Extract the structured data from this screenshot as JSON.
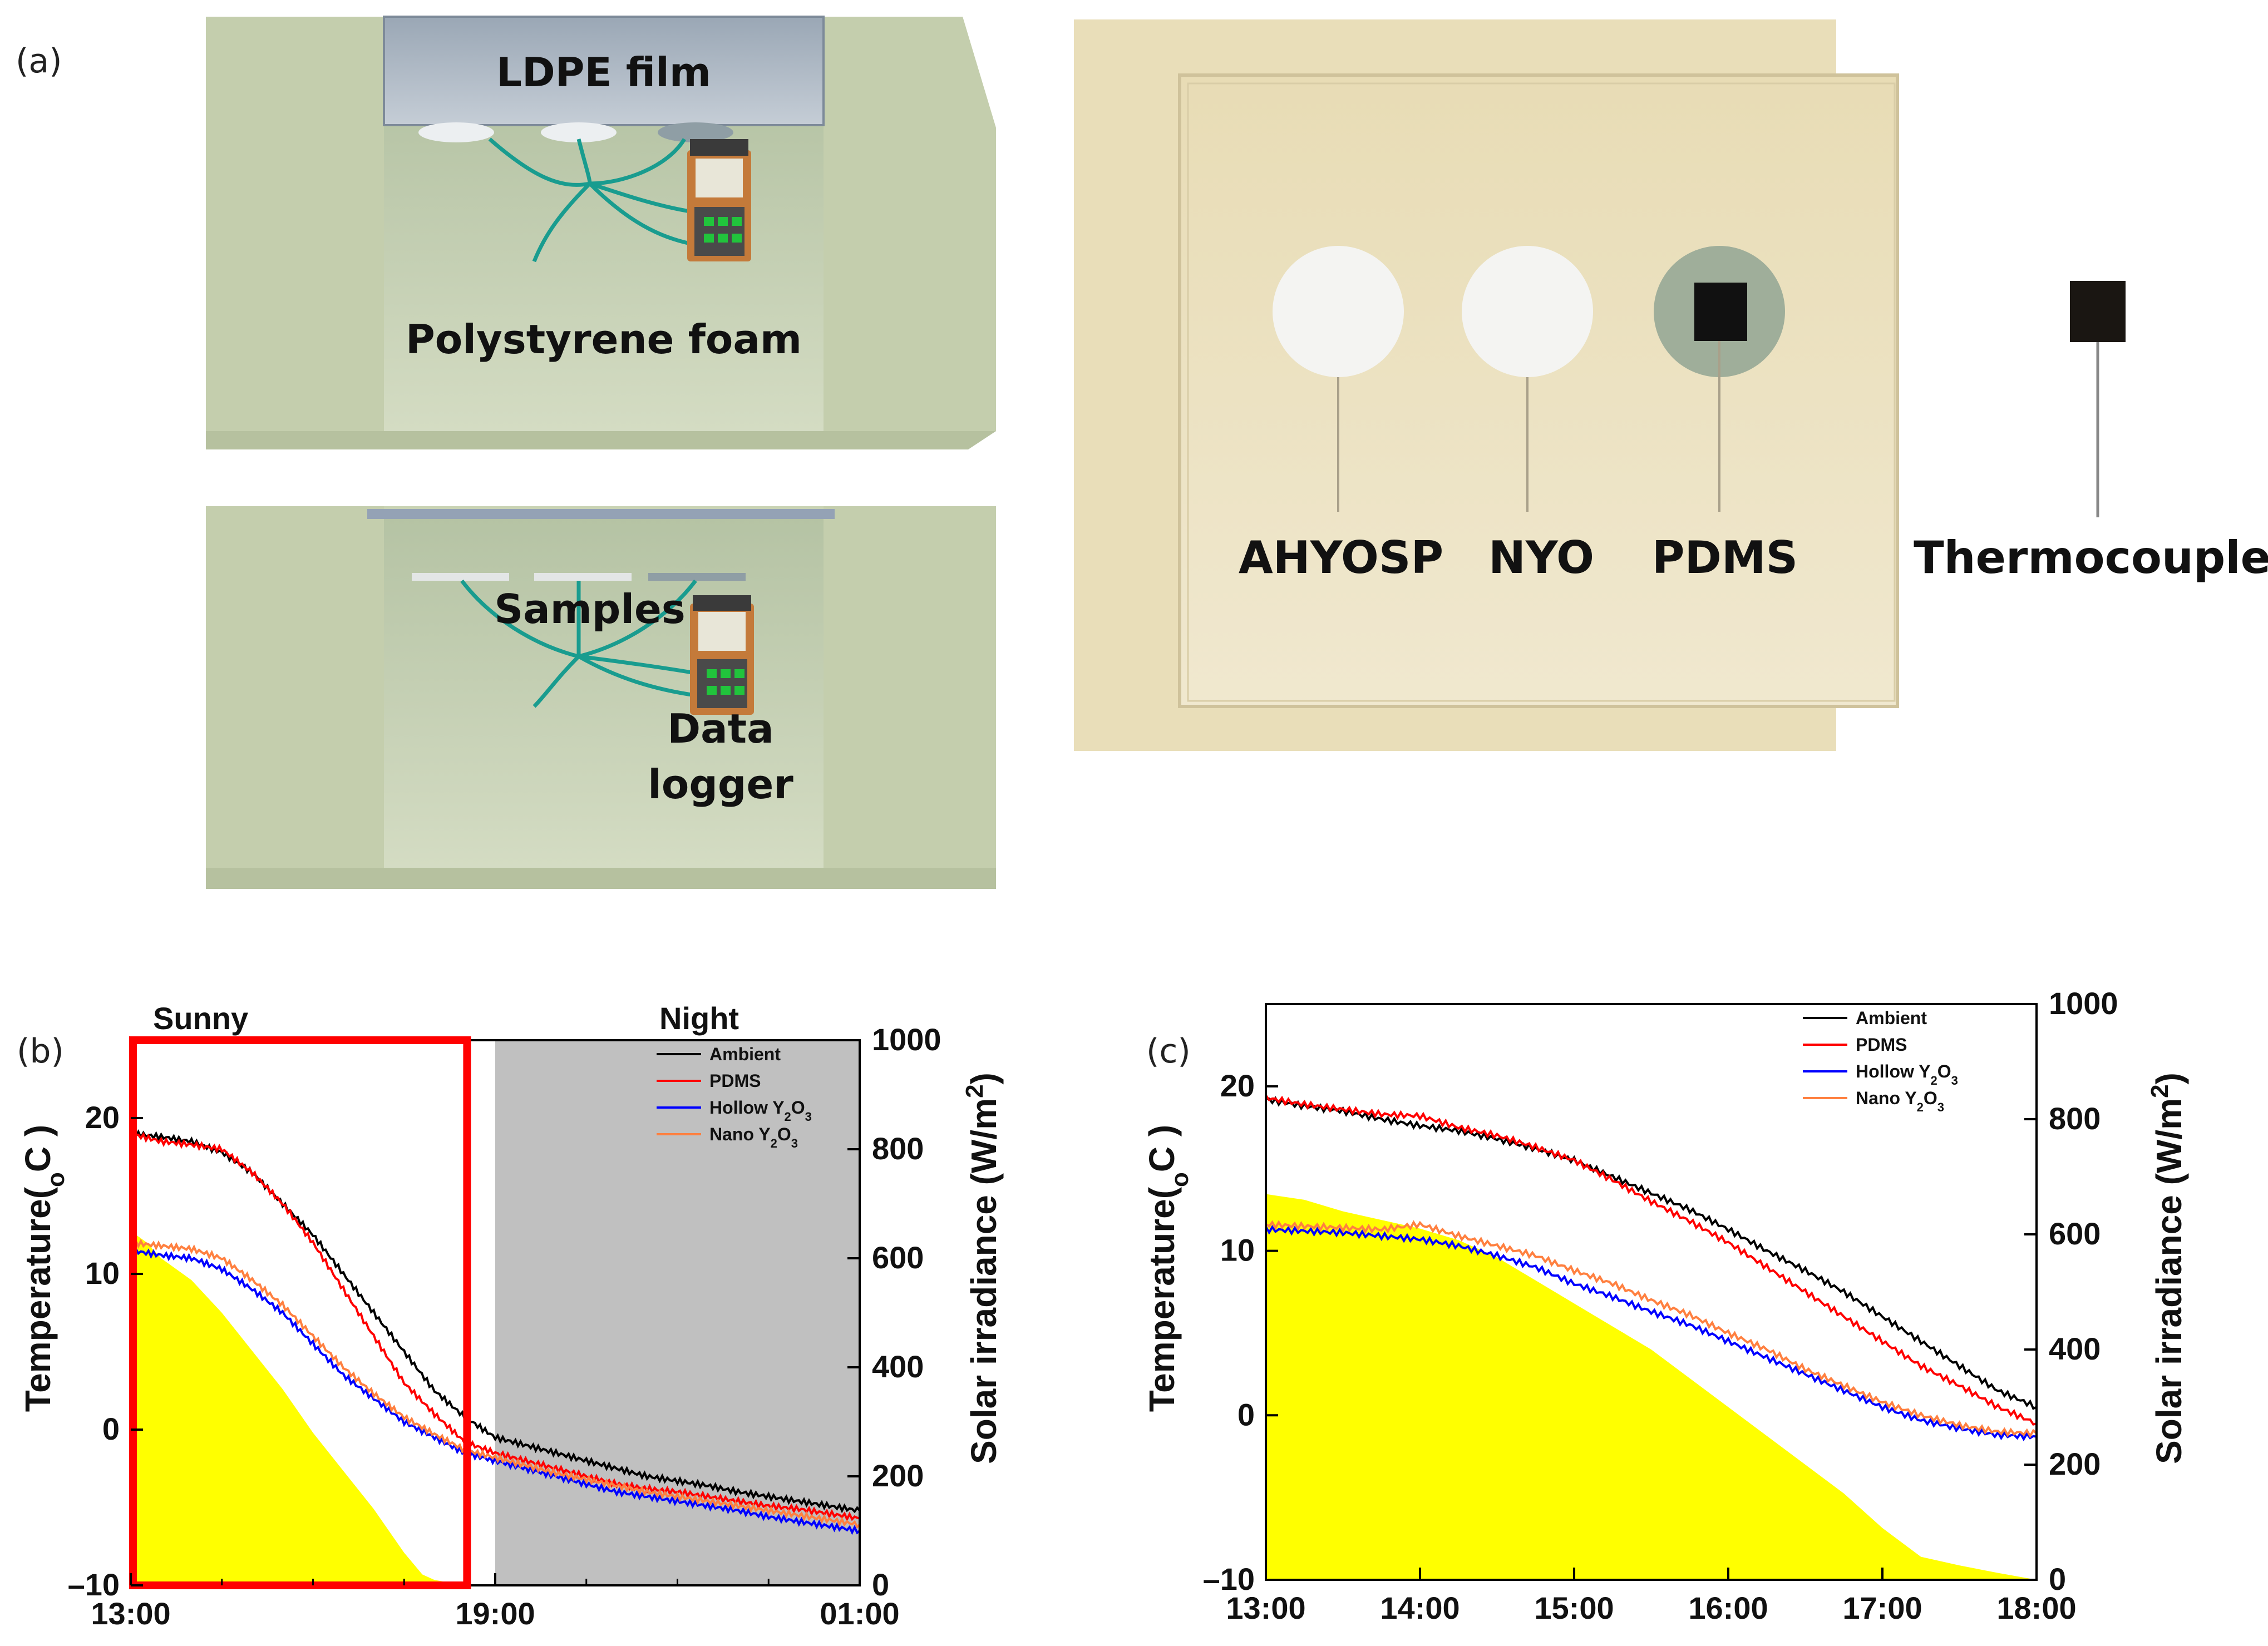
{
  "panels": {
    "a": {
      "letter": "(a)",
      "box_labels": [
        "LDPE film",
        "Polystyrene foam",
        "Samples",
        "Data",
        "logger"
      ],
      "photo_labels": [
        "AHYOSP",
        "NYO",
        "PDMS",
        "Thermocouple"
      ]
    },
    "b": {
      "letter": "(b)"
    },
    "c": {
      "letter": "(c)"
    }
  },
  "colors": {
    "ambient": "#000000",
    "pdms": "#ff0000",
    "hollow": "#0000ff",
    "nano": "#ff8040",
    "solar": "#ffff00",
    "night": "#c0c0c0",
    "sunny_box": "#ff0000",
    "box_wall": "#c9d3b4",
    "board": "#eadfbd"
  },
  "chart_data": [
    {
      "type": "line",
      "panel": "b",
      "x_ticks": [
        "13:00",
        "19:00",
        "01:00"
      ],
      "x_range_hours": [
        13,
        25
      ],
      "y_left_label": "Temperature(oC)",
      "y_left_label_parts": {
        "base": "Temperature(",
        "sub": "o",
        "rest": "C )"
      },
      "y_left_ticks": [
        -10,
        0,
        10,
        20
      ],
      "y_left_range": [
        -10,
        25
      ],
      "y_right_label": "Solar irradiance (W/m2)",
      "y_right_label_parts": {
        "base": "Solar irradiance (W/m",
        "sup": "2",
        "rest": ")"
      },
      "y_right_ticks": [
        0,
        200,
        400,
        600,
        800,
        1000
      ],
      "y_right_range": [
        0,
        1000
      ],
      "region_labels": {
        "sunny": "Sunny",
        "night": "Night"
      },
      "regions": {
        "sunny_hours": [
          13,
          18.5
        ],
        "night_hours": [
          19,
          25
        ]
      },
      "legend": {
        "entries": [
          "Ambient",
          "PDMS",
          "Hollow Y2O3",
          "Nano Y2O3"
        ],
        "placement": "top-right"
      },
      "series": [
        {
          "name": "Ambient",
          "x": [
            13,
            13.5,
            14,
            14.5,
            15,
            15.5,
            16,
            16.5,
            17,
            17.5,
            18,
            18.5,
            19,
            19.5,
            20,
            20.5,
            21,
            21.5,
            22,
            22.5,
            23,
            23.5,
            24,
            24.5,
            25
          ],
          "y": [
            19,
            18.8,
            18.5,
            17.8,
            16.5,
            14.5,
            12.5,
            10,
            7.5,
            5,
            2.5,
            0.8,
            -0.5,
            -1,
            -1.5,
            -2,
            -2.5,
            -3,
            -3.3,
            -3.6,
            -4,
            -4.3,
            -4.6,
            -4.9,
            -5.2
          ]
        },
        {
          "name": "PDMS",
          "x": [
            13,
            13.5,
            14,
            14.5,
            15,
            15.5,
            16,
            16.5,
            17,
            17.5,
            18,
            18.5,
            19,
            19.5,
            20,
            20.5,
            21,
            21.5,
            22,
            22.5,
            23,
            23.5,
            24,
            24.5,
            25
          ],
          "y": [
            19,
            18.5,
            18.3,
            18,
            16.5,
            14.5,
            12,
            9,
            6,
            3,
            1,
            -0.8,
            -1.5,
            -2,
            -2.5,
            -3,
            -3.5,
            -3.8,
            -4,
            -4.3,
            -4.6,
            -4.9,
            -5.1,
            -5.4,
            -5.7
          ]
        },
        {
          "name": "Hollow Y2O3",
          "x": [
            13,
            13.5,
            14,
            14.5,
            15,
            15.5,
            16,
            16.5,
            17,
            17.5,
            18,
            18.5,
            19,
            19.5,
            20,
            20.5,
            21,
            21.5,
            22,
            22.5,
            23,
            23.5,
            24,
            24.5,
            25
          ],
          "y": [
            11.5,
            11.2,
            11,
            10.3,
            9,
            7.5,
            5.5,
            3.5,
            2,
            0.5,
            -0.5,
            -1.5,
            -2,
            -2.5,
            -3,
            -3.5,
            -4,
            -4.3,
            -4.6,
            -4.9,
            -5.2,
            -5.6,
            -5.9,
            -6.2,
            -6.5
          ]
        },
        {
          "name": "Nano Y2O3",
          "x": [
            13,
            13.5,
            14,
            14.5,
            15,
            15.5,
            16,
            16.5,
            17,
            17.5,
            18,
            18.5,
            19,
            19.5,
            20,
            20.5,
            21,
            21.5,
            22,
            22.5,
            23,
            23.5,
            24,
            24.5,
            25
          ],
          "y": [
            12,
            11.8,
            11.6,
            11,
            9.6,
            8,
            6,
            4,
            2.3,
            0.8,
            -0.3,
            -1.3,
            -1.8,
            -2.3,
            -2.8,
            -3.2,
            -3.6,
            -4,
            -4.3,
            -4.6,
            -4.9,
            -5.2,
            -5.5,
            -5.8,
            -6.1
          ]
        }
      ],
      "solar": {
        "x": [
          13,
          13.25,
          13.5,
          14,
          14.5,
          15,
          15.5,
          16,
          16.5,
          17,
          17.5,
          17.8,
          18,
          18.5,
          19,
          20,
          25
        ],
        "y": [
          650,
          630,
          600,
          560,
          500,
          430,
          360,
          280,
          210,
          140,
          60,
          20,
          10,
          0,
          0,
          0,
          0
        ]
      }
    },
    {
      "type": "line",
      "panel": "c",
      "x_ticks": [
        "13:00",
        "14:00",
        "15:00",
        "16:00",
        "17:00",
        "18:00"
      ],
      "x_range_hours": [
        13,
        18
      ],
      "y_left_label": "Temperature(oC)",
      "y_left_label_parts": {
        "base": "Temperature(",
        "sub": "o",
        "rest": "C )"
      },
      "y_left_ticks": [
        -10,
        0,
        10,
        20
      ],
      "y_left_range": [
        -10,
        25
      ],
      "y_right_label": "Solar irradiance (W/m2)",
      "y_right_label_parts": {
        "base": "Solar irradiance (W/m",
        "sup": "2",
        "rest": ")"
      },
      "y_right_ticks": [
        0,
        200,
        400,
        600,
        800,
        1000
      ],
      "y_right_range": [
        0,
        1000
      ],
      "legend": {
        "entries": [
          "Ambient",
          "PDMS",
          "Hollow Y2O3",
          "Nano Y2O3"
        ],
        "placement": "top-right"
      },
      "series": [
        {
          "name": "Ambient",
          "x": [
            13,
            13.25,
            13.5,
            13.75,
            14,
            14.25,
            14.5,
            14.75,
            15,
            15.25,
            15.5,
            15.75,
            16,
            16.25,
            16.5,
            16.75,
            17,
            17.25,
            17.5,
            17.75,
            18
          ],
          "y": [
            19.2,
            18.8,
            18.5,
            18,
            17.6,
            17.3,
            16.8,
            16.2,
            15.5,
            14.5,
            13.5,
            12.5,
            11.3,
            10,
            8.8,
            7.5,
            6,
            4.5,
            3,
            1.5,
            0.5
          ]
        },
        {
          "name": "PDMS",
          "x": [
            13,
            13.25,
            13.5,
            13.75,
            14,
            14.25,
            14.5,
            14.75,
            15,
            15.25,
            15.5,
            15.75,
            16,
            16.25,
            16.5,
            16.75,
            17,
            17.25,
            17.5,
            17.75,
            18
          ],
          "y": [
            19.3,
            18.9,
            18.6,
            18.3,
            18.2,
            17.5,
            17,
            16.3,
            15.5,
            14.3,
            13,
            11.8,
            10.5,
            9,
            7.5,
            6,
            4.5,
            3,
            1.8,
            0.5,
            -0.5
          ]
        },
        {
          "name": "Hollow Y2O3",
          "x": [
            13,
            13.25,
            13.5,
            13.75,
            14,
            14.25,
            14.5,
            14.75,
            15,
            15.25,
            15.5,
            15.75,
            16,
            16.25,
            16.5,
            16.75,
            17,
            17.25,
            17.5,
            17.75,
            18
          ],
          "y": [
            11.3,
            11.2,
            11.1,
            10.9,
            10.7,
            10.3,
            9.7,
            9,
            8,
            7.2,
            6.3,
            5.5,
            4.5,
            3.5,
            2.5,
            1.5,
            0.5,
            -0.3,
            -0.8,
            -1.2,
            -1.3
          ]
        },
        {
          "name": "Nano Y2O3",
          "x": [
            13,
            13.25,
            13.5,
            13.75,
            14,
            14.25,
            14.5,
            14.75,
            15,
            15.25,
            15.5,
            15.75,
            16,
            16.25,
            16.5,
            16.75,
            17,
            17.25,
            17.5,
            17.75,
            18
          ],
          "y": [
            11.6,
            11.5,
            11.4,
            11.3,
            11.6,
            10.9,
            10.3,
            9.7,
            8.8,
            8,
            7,
            6.1,
            5,
            4,
            2.8,
            1.8,
            0.8,
            0,
            -0.6,
            -1,
            -1.1
          ]
        }
      ],
      "solar": {
        "x": [
          13,
          13.25,
          13.5,
          13.75,
          14,
          14.25,
          14.5,
          14.75,
          15,
          15.25,
          15.5,
          15.75,
          16,
          16.25,
          16.5,
          16.75,
          17,
          17.25,
          17.5,
          17.75,
          18
        ],
        "y": [
          670,
          660,
          640,
          625,
          610,
          590,
          560,
          520,
          480,
          440,
          400,
          350,
          300,
          250,
          200,
          150,
          90,
          40,
          25,
          12,
          0
        ]
      }
    }
  ]
}
